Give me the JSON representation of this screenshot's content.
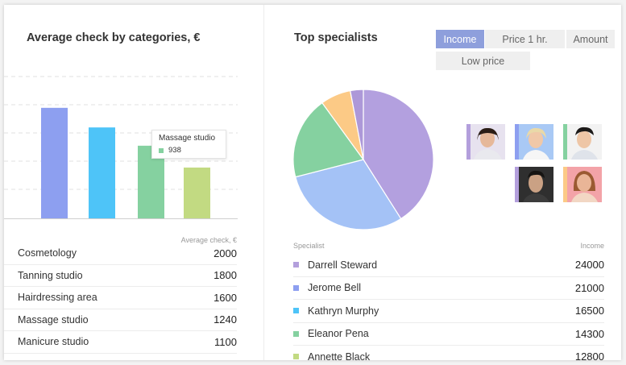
{
  "left_panel": {
    "title": "Average check by categories, €",
    "tooltip": {
      "title": "Massage studio",
      "value": "938",
      "color": "#85d1a0"
    },
    "table_header": "Average check, €",
    "rows": [
      {
        "label": "Cosmetology",
        "value": "2000"
      },
      {
        "label": "Tanning studio",
        "value": "1800"
      },
      {
        "label": "Hairdressing area",
        "value": "1600"
      },
      {
        "label": "Massage studio",
        "value": "1240"
      },
      {
        "label": "Manicure studio",
        "value": "1100"
      }
    ]
  },
  "chart_data": {
    "type": "bar",
    "values": [
      1240,
      1020,
      815,
      570
    ],
    "colors": [
      "#8d9ff0",
      "#4ec4f8",
      "#85d1a0",
      "#c2da82"
    ],
    "grid": true
  },
  "right_panel": {
    "title": "Top specialists",
    "filters": [
      {
        "label": "Income",
        "active": true
      },
      {
        "label": "Price 1 hr.",
        "active": false
      },
      {
        "label": "Amount",
        "active": false
      },
      {
        "label": "Low price",
        "active": false
      }
    ],
    "col_specialist": "Specialist",
    "col_income": "Income",
    "specialists": [
      {
        "name": "Darrell Steward",
        "value": "24000",
        "color": "#b39fdc"
      },
      {
        "name": "Jerome Bell",
        "value": "21000",
        "color": "#8d9ff0"
      },
      {
        "name": "Kathryn Murphy",
        "value": "16500",
        "color": "#4ec4f8"
      },
      {
        "name": "Eleanor Pena",
        "value": "14300",
        "color": "#85d1a0"
      },
      {
        "name": "Annette Black",
        "value": "12800",
        "color": "#c2da82"
      }
    ],
    "pie": {
      "values": [
        41,
        30,
        19,
        7,
        3
      ],
      "colors": [
        "#b3a0df",
        "#a4c2f6",
        "#85d1a0",
        "#fcca86",
        "#ad98d8"
      ]
    },
    "avatars": [
      {
        "name": "avatar-1",
        "stripe": "#b39fdc",
        "bg": "#e7e2ef"
      },
      {
        "name": "avatar-2",
        "stripe": "#8d9ff0",
        "bg": "#a9c9f5"
      },
      {
        "name": "avatar-3",
        "stripe": "#85d1a0",
        "bg": "#f2f2f2"
      },
      {
        "name": "avatar-4",
        "stripe": "#b39fdc",
        "bg": "#e3e3e3"
      },
      {
        "name": "avatar-5",
        "stripe": "#fcca86",
        "bg": "#f3a3a8"
      }
    ]
  }
}
